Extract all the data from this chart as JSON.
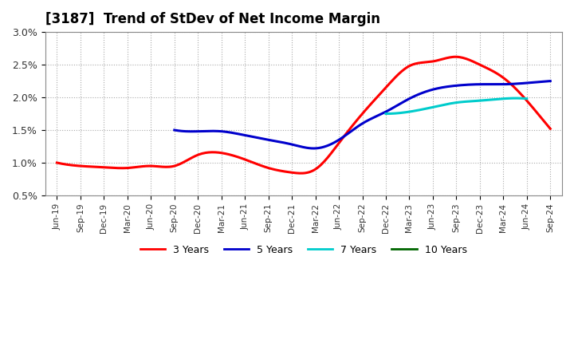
{
  "title": "[3187]  Trend of StDev of Net Income Margin",
  "ylim": [
    0.005,
    0.03
  ],
  "yticks": [
    0.005,
    0.01,
    0.015,
    0.02,
    0.025,
    0.03
  ],
  "ytick_labels": [
    "0.5%",
    "1.0%",
    "1.5%",
    "2.0%",
    "2.5%",
    "3.0%"
  ],
  "x_labels": [
    "Jun-19",
    "Sep-19",
    "Dec-19",
    "Mar-20",
    "Jun-20",
    "Sep-20",
    "Dec-20",
    "Mar-21",
    "Jun-21",
    "Sep-21",
    "Dec-21",
    "Mar-22",
    "Jun-22",
    "Sep-22",
    "Dec-22",
    "Mar-23",
    "Jun-23",
    "Sep-23",
    "Dec-23",
    "Mar-24",
    "Jun-24",
    "Sep-24"
  ],
  "series": {
    "3 Years": {
      "color": "#ff0000",
      "values": [
        0.01,
        0.0095,
        0.0093,
        0.0092,
        0.0095,
        0.0095,
        0.0112,
        0.0115,
        0.0105,
        0.0092,
        0.0085,
        0.009,
        0.013,
        0.0175,
        0.0215,
        0.0248,
        0.0255,
        0.0262,
        0.025,
        0.023,
        0.0195,
        0.0152
      ]
    },
    "5 Years": {
      "color": "#0000cc",
      "values": [
        null,
        null,
        null,
        null,
        null,
        0.015,
        0.0148,
        0.0148,
        0.0142,
        0.0135,
        0.0128,
        0.0122,
        0.0135,
        0.016,
        0.0178,
        0.0198,
        0.0212,
        0.0218,
        0.022,
        0.022,
        0.0222,
        0.0225
      ]
    },
    "7 Years": {
      "color": "#00cccc",
      "values": [
        null,
        null,
        null,
        null,
        null,
        null,
        null,
        null,
        null,
        null,
        null,
        null,
        null,
        null,
        0.0175,
        0.0178,
        0.0185,
        0.0192,
        0.0195,
        0.0198,
        0.0198,
        null
      ]
    },
    "10 Years": {
      "color": "#006600",
      "values": [
        null,
        null,
        null,
        null,
        null,
        null,
        null,
        null,
        null,
        null,
        null,
        null,
        null,
        null,
        null,
        null,
        null,
        null,
        null,
        null,
        null,
        null
      ]
    }
  },
  "background_color": "#ffffff",
  "grid_color": "#aaaaaa",
  "title_fontsize": 12
}
